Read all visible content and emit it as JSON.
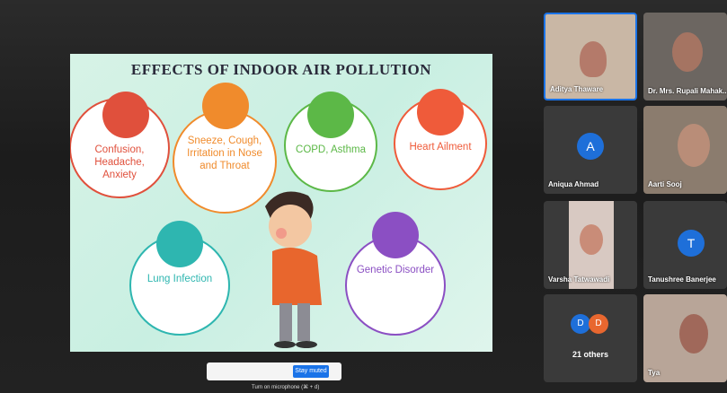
{
  "slide": {
    "title": "EFFECTS OF INDOOR AIR POLLUTION",
    "items": [
      {
        "label": "Confusion, Headache, Anxiety"
      },
      {
        "label": "Sneeze, Cough, Irritation in Nose and Throat"
      },
      {
        "label": "COPD, Asthma"
      },
      {
        "label": "Heart Ailment"
      },
      {
        "label": "Lung Infection"
      },
      {
        "label": "Genetic Disorder"
      }
    ]
  },
  "participants": [
    {
      "name": "Aditya Thaware"
    },
    {
      "name": "Dr. Mrs. Rupali Mahak..."
    },
    {
      "name": "Aniqua Ahmad",
      "initial": "A"
    },
    {
      "name": "Aarti Sooj"
    },
    {
      "name": "Varsha Tatwawadi"
    },
    {
      "name": "Tanushree Banerjee",
      "initial": "T"
    },
    {
      "name": "Tya"
    }
  ],
  "others": {
    "initials": [
      "D",
      "D"
    ],
    "label": "21 others"
  },
  "controls": {
    "button": "Stay muted",
    "hint": "Turn on microphone (⌘ + d)"
  }
}
